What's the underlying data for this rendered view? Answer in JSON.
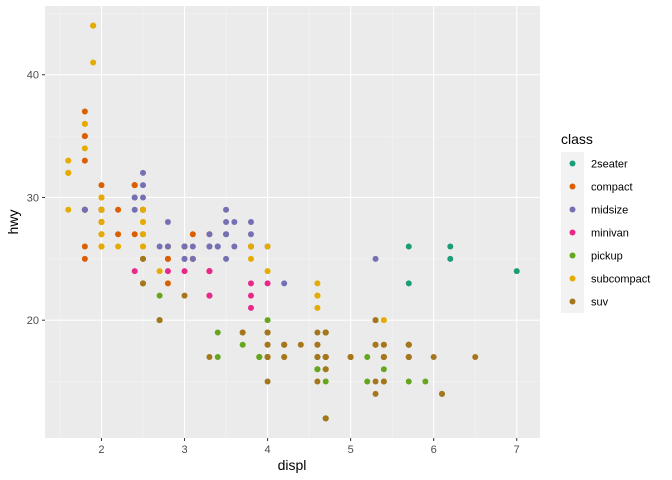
{
  "chart_data": {
    "type": "scatter",
    "xlabel": "displ",
    "ylabel": "hwy",
    "xlim": [
      1.32,
      7.28
    ],
    "ylim": [
      10.4,
      45.6
    ],
    "x_ticks": [
      2,
      3,
      4,
      5,
      6,
      7
    ],
    "x_tick_labels": [
      "2",
      "3",
      "4",
      "5",
      "6",
      "7"
    ],
    "y_ticks": [
      20,
      30,
      40
    ],
    "y_tick_labels": [
      "20",
      "30",
      "40"
    ],
    "grid": true,
    "legend": {
      "title": "class",
      "placement": "right"
    },
    "series": [
      {
        "name": "2seater",
        "color": "#1b9e77",
        "points": [
          [
            5.7,
            26
          ],
          [
            5.7,
            23
          ],
          [
            6.2,
            26
          ],
          [
            6.2,
            25
          ],
          [
            7.0,
            24
          ]
        ]
      },
      {
        "name": "compact",
        "color": "#d95f02",
        "points": [
          [
            1.8,
            29
          ],
          [
            1.8,
            29
          ],
          [
            2.0,
            31
          ],
          [
            2.0,
            30
          ],
          [
            2.8,
            26
          ],
          [
            2.8,
            26
          ],
          [
            3.1,
            27
          ],
          [
            1.8,
            26
          ],
          [
            1.8,
            25
          ],
          [
            2.0,
            28
          ],
          [
            2.0,
            27
          ],
          [
            2.8,
            25
          ],
          [
            2.8,
            25
          ],
          [
            3.1,
            25
          ],
          [
            3.1,
            25
          ],
          [
            2.0,
            28
          ],
          [
            2.0,
            29
          ],
          [
            2.4,
            31
          ],
          [
            2.4,
            27
          ],
          [
            3.0,
            26
          ],
          [
            2.2,
            27
          ],
          [
            2.2,
            29
          ],
          [
            2.4,
            31
          ],
          [
            2.4,
            31
          ],
          [
            3.0,
            26
          ],
          [
            3.0,
            26
          ],
          [
            3.3,
            27
          ],
          [
            1.8,
            29
          ],
          [
            1.8,
            29
          ],
          [
            1.8,
            37
          ],
          [
            1.8,
            35
          ],
          [
            1.8,
            33
          ],
          [
            1.8,
            35
          ],
          [
            2.0,
            29
          ],
          [
            2.0,
            29
          ],
          [
            2.8,
            23
          ],
          [
            2.5,
            29
          ],
          [
            2.5,
            29
          ]
        ]
      },
      {
        "name": "midsize",
        "color": "#7570b3",
        "points": [
          [
            2.4,
            30
          ],
          [
            2.4,
            29
          ],
          [
            3.1,
            26
          ],
          [
            3.5,
            29
          ],
          [
            3.6,
            26
          ],
          [
            2.4,
            30
          ],
          [
            3.0,
            26
          ],
          [
            3.3,
            26
          ],
          [
            3.3,
            26
          ],
          [
            3.5,
            28
          ],
          [
            3.8,
            26
          ],
          [
            3.8,
            27
          ],
          [
            4.0,
            26
          ],
          [
            2.5,
            30
          ],
          [
            2.5,
            31
          ],
          [
            3.5,
            27
          ],
          [
            3.5,
            25
          ],
          [
            3.0,
            25
          ],
          [
            3.0,
            25
          ],
          [
            3.5,
            27
          ],
          [
            2.5,
            32
          ],
          [
            2.5,
            27
          ],
          [
            3.3,
            27
          ],
          [
            3.8,
            28
          ],
          [
            4.2,
            23
          ],
          [
            5.3,
            25
          ],
          [
            2.0,
            29
          ],
          [
            2.0,
            29
          ],
          [
            2.8,
            28
          ],
          [
            1.8,
            29
          ],
          [
            2.8,
            26
          ],
          [
            3.6,
            28
          ],
          [
            3.8,
            26
          ],
          [
            3.1,
            25
          ],
          [
            2.7,
            26
          ],
          [
            2.5,
            29
          ],
          [
            2.0,
            29
          ],
          [
            1.8,
            29
          ],
          [
            3.4,
            26
          ],
          [
            3.4,
            26
          ]
        ]
      },
      {
        "name": "minivan",
        "color": "#e7298a",
        "points": [
          [
            2.4,
            24
          ],
          [
            3.0,
            24
          ],
          [
            3.3,
            22
          ],
          [
            3.3,
            22
          ],
          [
            3.3,
            24
          ],
          [
            3.3,
            24
          ],
          [
            3.3,
            24
          ],
          [
            3.8,
            22
          ],
          [
            3.8,
            21
          ],
          [
            3.8,
            23
          ],
          [
            4.0,
            23
          ],
          [
            2.8,
            24
          ]
        ]
      },
      {
        "name": "pickup",
        "color": "#66a61e",
        "points": [
          [
            3.7,
            19
          ],
          [
            3.7,
            18
          ],
          [
            3.9,
            17
          ],
          [
            3.9,
            17
          ],
          [
            4.7,
            19
          ],
          [
            4.7,
            19
          ],
          [
            4.7,
            12
          ],
          [
            5.2,
            17
          ],
          [
            5.2,
            15
          ],
          [
            5.7,
            17
          ],
          [
            5.9,
            15
          ],
          [
            4.7,
            17
          ],
          [
            4.7,
            16
          ],
          [
            4.7,
            12
          ],
          [
            4.7,
            17
          ],
          [
            5.7,
            15
          ],
          [
            6.1,
            14
          ],
          [
            4.7,
            15
          ],
          [
            2.7,
            20
          ],
          [
            2.7,
            20
          ],
          [
            2.7,
            22
          ],
          [
            3.4,
            17
          ],
          [
            3.4,
            19
          ],
          [
            4.0,
            20
          ],
          [
            4.0,
            17
          ],
          [
            4.6,
            16
          ],
          [
            5.4,
            15
          ],
          [
            5.4,
            17
          ],
          [
            4.0,
            17
          ],
          [
            4.6,
            16
          ],
          [
            5.4,
            16
          ],
          [
            4.2,
            17
          ],
          [
            4.6,
            17
          ],
          [
            3.9,
            17
          ]
        ]
      },
      {
        "name": "subcompact",
        "color": "#e6ab02",
        "points": [
          [
            3.8,
            26
          ],
          [
            3.8,
            25
          ],
          [
            4.0,
            26
          ],
          [
            4.0,
            24
          ],
          [
            4.6,
            21
          ],
          [
            4.6,
            22
          ],
          [
            4.6,
            23
          ],
          [
            4.6,
            22
          ],
          [
            5.4,
            20
          ],
          [
            1.6,
            33
          ],
          [
            1.6,
            32
          ],
          [
            1.6,
            32
          ],
          [
            1.6,
            29
          ],
          [
            1.6,
            32
          ],
          [
            1.8,
            34
          ],
          [
            1.8,
            36
          ],
          [
            1.8,
            36
          ],
          [
            2.0,
            29
          ],
          [
            2.0,
            26
          ],
          [
            2.0,
            27
          ],
          [
            2.0,
            30
          ],
          [
            2.0,
            26
          ],
          [
            2.0,
            26
          ],
          [
            2.7,
            24
          ],
          [
            2.5,
            26
          ],
          [
            2.5,
            29
          ],
          [
            2.5,
            28
          ],
          [
            2.5,
            26
          ],
          [
            2.5,
            27
          ],
          [
            1.9,
            44
          ],
          [
            1.9,
            44
          ],
          [
            1.9,
            41
          ],
          [
            2.0,
            29
          ],
          [
            2.0,
            26
          ],
          [
            2.5,
            28
          ],
          [
            2.5,
            29
          ],
          [
            2.2,
            26
          ],
          [
            2.0,
            28
          ]
        ]
      },
      {
        "name": "suv",
        "color": "#a6761d",
        "points": [
          [
            5.3,
            20
          ],
          [
            5.3,
            15
          ],
          [
            5.3,
            20
          ],
          [
            5.7,
            17
          ],
          [
            6.0,
            17
          ],
          [
            5.7,
            17
          ],
          [
            5.7,
            18
          ],
          [
            6.5,
            17
          ],
          [
            4.0,
            17
          ],
          [
            4.7,
            19
          ],
          [
            4.7,
            17
          ],
          [
            4.7,
            16
          ],
          [
            4.7,
            19
          ],
          [
            5.7,
            18
          ],
          [
            5.7,
            18
          ],
          [
            4.0,
            15
          ],
          [
            4.0,
            17
          ],
          [
            4.6,
            19
          ],
          [
            5.0,
            17
          ],
          [
            3.7,
            19
          ],
          [
            4.7,
            17
          ],
          [
            4.7,
            12
          ],
          [
            5.7,
            18
          ],
          [
            6.1,
            14
          ],
          [
            4.0,
            19
          ],
          [
            4.2,
            18
          ],
          [
            4.4,
            18
          ],
          [
            4.6,
            18
          ],
          [
            5.4,
            18
          ],
          [
            5.4,
            17
          ],
          [
            5.4,
            17
          ],
          [
            4.0,
            19
          ],
          [
            4.0,
            19
          ],
          [
            4.6,
            17
          ],
          [
            5.0,
            17
          ],
          [
            4.2,
            17
          ],
          [
            4.2,
            18
          ],
          [
            4.6,
            15
          ],
          [
            4.6,
            18
          ],
          [
            5.4,
            18
          ],
          [
            5.4,
            15
          ],
          [
            5.3,
            14
          ],
          [
            5.3,
            18
          ],
          [
            5.3,
            18
          ],
          [
            2.5,
            23
          ],
          [
            2.5,
            25
          ],
          [
            2.5,
            23
          ],
          [
            2.5,
            25
          ],
          [
            2.7,
            20
          ],
          [
            3.0,
            22
          ],
          [
            3.3,
            17
          ],
          [
            4.0,
            17
          ],
          [
            4.0,
            18
          ],
          [
            4.7,
            17
          ],
          [
            4.7,
            17
          ],
          [
            5.7,
            17
          ],
          [
            5.4,
            17
          ],
          [
            4.0,
            17
          ],
          [
            4.0,
            18
          ],
          [
            4.6,
            17
          ],
          [
            5.0,
            17
          ],
          [
            4.2,
            18
          ]
        ]
      }
    ]
  }
}
